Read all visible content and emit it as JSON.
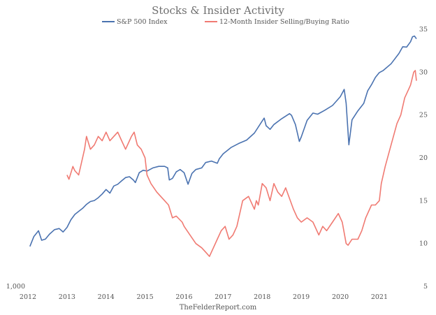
{
  "chart_data": {
    "type": "line",
    "title": "Stocks & Insider Activity",
    "source": "TheFelderReport.com",
    "x_tick_labels": [
      "2012",
      "2013",
      "2014",
      "2015",
      "2016",
      "2017",
      "2018",
      "2019",
      "2020",
      "2021"
    ],
    "x_range": [
      2012.0,
      2021.95
    ],
    "left_axis": {
      "tick_labels": [
        "1,000"
      ],
      "scale": "log",
      "range": [
        1000,
        4900
      ]
    },
    "right_axis": {
      "tick_labels": [
        "5",
        "10",
        "15",
        "20",
        "25",
        "30",
        "35"
      ],
      "range": [
        5,
        35
      ]
    },
    "legend": {
      "placement": "top-center"
    },
    "grid": false,
    "series": [
      {
        "name": "S&P 500 Index",
        "axis": "left",
        "color": "#4a72b0",
        "x": [
          2012.05,
          2012.15,
          2012.27,
          2012.35,
          2012.45,
          2012.55,
          2012.68,
          2012.8,
          2012.9,
          2013.0,
          2013.1,
          2013.2,
          2013.3,
          2013.4,
          2013.5,
          2013.6,
          2013.7,
          2013.8,
          2013.9,
          2014.0,
          2014.1,
          2014.2,
          2014.3,
          2014.4,
          2014.5,
          2014.6,
          2014.7,
          2014.75,
          2014.85,
          2014.95,
          2015.05,
          2015.2,
          2015.35,
          2015.5,
          2015.58,
          2015.62,
          2015.7,
          2015.8,
          2015.9,
          2016.0,
          2016.1,
          2016.2,
          2016.3,
          2016.45,
          2016.55,
          2016.7,
          2016.85,
          2016.9,
          2017.0,
          2017.2,
          2017.4,
          2017.6,
          2017.8,
          2018.0,
          2018.05,
          2018.1,
          2018.2,
          2018.3,
          2018.5,
          2018.7,
          2018.75,
          2018.85,
          2018.95,
          2019.0,
          2019.15,
          2019.3,
          2019.42,
          2019.6,
          2019.8,
          2020.0,
          2020.1,
          2020.15,
          2020.22,
          2020.3,
          2020.45,
          2020.6,
          2020.7,
          2020.8,
          2020.9,
          2021.0,
          2021.1,
          2021.3,
          2021.5,
          2021.6,
          2021.7,
          2021.8,
          2021.85,
          2021.9,
          2021.95
        ],
        "y": [
          1280,
          1360,
          1410,
          1330,
          1340,
          1380,
          1420,
          1430,
          1400,
          1440,
          1510,
          1560,
          1590,
          1620,
          1660,
          1690,
          1700,
          1730,
          1770,
          1820,
          1780,
          1860,
          1880,
          1920,
          1960,
          1970,
          1930,
          1900,
          2020,
          2050,
          2040,
          2080,
          2100,
          2100,
          2080,
          1930,
          1950,
          2030,
          2060,
          2020,
          1880,
          2010,
          2060,
          2080,
          2150,
          2170,
          2140,
          2200,
          2270,
          2360,
          2420,
          2470,
          2580,
          2780,
          2830,
          2700,
          2640,
          2720,
          2820,
          2910,
          2880,
          2720,
          2450,
          2520,
          2790,
          2920,
          2900,
          2970,
          3060,
          3230,
          3380,
          3100,
          2400,
          2800,
          2960,
          3100,
          3350,
          3480,
          3640,
          3750,
          3800,
          3960,
          4220,
          4400,
          4390,
          4540,
          4680,
          4700,
          4620
        ]
      },
      {
        "name": "12-Month Insider Selling/Buying Ratio",
        "axis": "right",
        "color": "#f07a72",
        "x": [
          2013.0,
          2013.05,
          2013.15,
          2013.2,
          2013.3,
          2013.45,
          2013.5,
          2013.6,
          2013.7,
          2013.8,
          2013.9,
          2014.0,
          2014.1,
          2014.2,
          2014.3,
          2014.4,
          2014.5,
          2014.6,
          2014.65,
          2014.72,
          2014.8,
          2014.9,
          2015.0,
          2015.05,
          2015.15,
          2015.3,
          2015.4,
          2015.5,
          2015.6,
          2015.7,
          2015.8,
          2015.95,
          2016.0,
          2016.15,
          2016.3,
          2016.45,
          2016.55,
          2016.65,
          2016.75,
          2016.85,
          2016.95,
          2017.05,
          2017.15,
          2017.25,
          2017.35,
          2017.5,
          2017.65,
          2017.8,
          2017.85,
          2017.9,
          2018.0,
          2018.1,
          2018.2,
          2018.3,
          2018.4,
          2018.5,
          2018.6,
          2018.8,
          2018.9,
          2019.0,
          2019.15,
          2019.3,
          2019.45,
          2019.55,
          2019.65,
          2019.8,
          2019.95,
          2020.05,
          2020.15,
          2020.2,
          2020.3,
          2020.45,
          2020.55,
          2020.65,
          2020.8,
          2020.9,
          2021.0,
          2021.05,
          2021.15,
          2021.3,
          2021.45,
          2021.55,
          2021.65,
          2021.75,
          2021.8,
          2021.88,
          2021.92,
          2021.95
        ],
        "y": [
          18,
          17.5,
          19,
          18.5,
          18,
          21,
          22.5,
          21,
          21.5,
          22.5,
          22,
          23,
          22,
          22.5,
          23,
          22,
          21,
          22,
          22.5,
          23,
          21.5,
          21,
          20,
          18,
          17,
          16,
          15.5,
          15,
          14.5,
          13,
          13.2,
          12.5,
          12,
          11,
          10,
          9.5,
          9,
          8.5,
          9.5,
          10.5,
          11.5,
          12,
          10.5,
          11,
          12,
          15,
          15.5,
          14,
          15,
          14.5,
          17,
          16.5,
          15,
          17,
          16,
          15.5,
          16.5,
          14,
          13,
          12.5,
          13,
          12.5,
          11,
          12,
          11.5,
          12.5,
          13.5,
          12.5,
          10,
          9.8,
          10.5,
          10.5,
          11.5,
          13,
          14.5,
          14.5,
          15,
          17,
          19,
          21.5,
          24,
          25,
          27,
          28,
          28.5,
          30,
          30.2,
          29
        ]
      }
    ]
  }
}
